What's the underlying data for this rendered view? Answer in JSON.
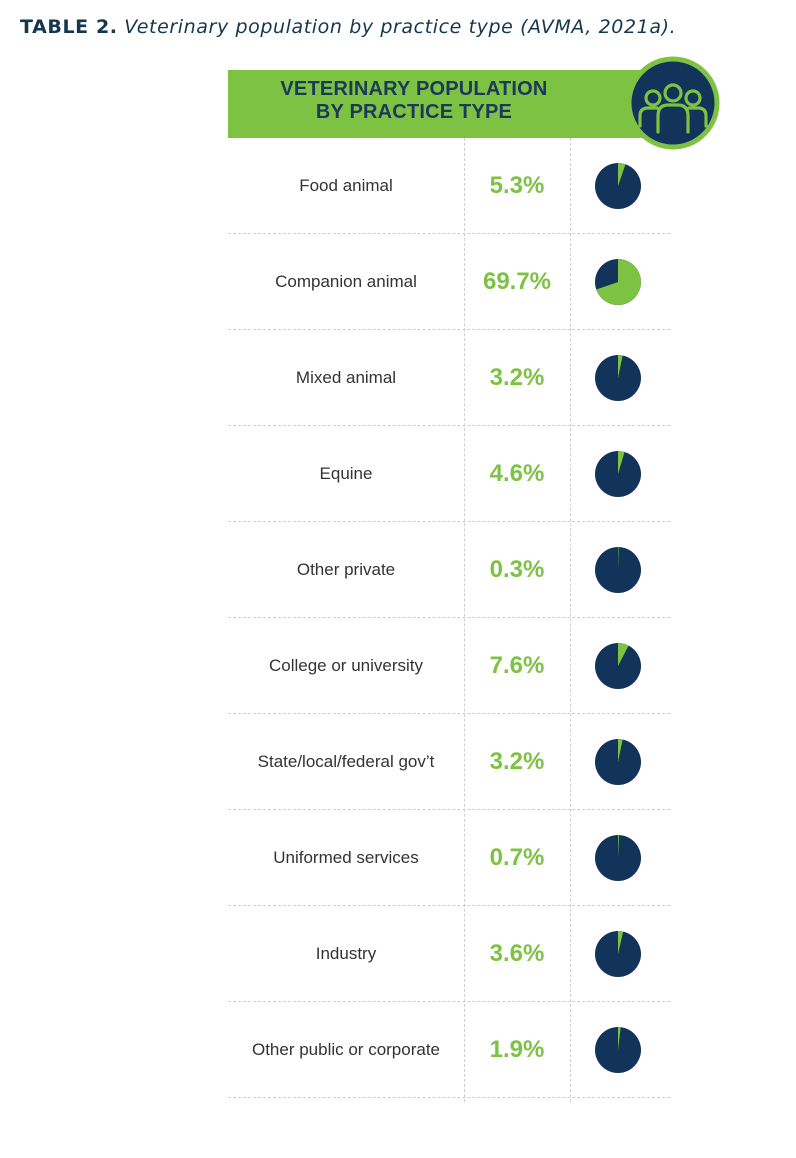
{
  "caption": {
    "label": "TABLE 2.",
    "text": "Veterinary population by practice type (AVMA, 2021a)."
  },
  "colors": {
    "green": "#7dc242",
    "navy": "#12335a",
    "title_text": "#1b3a5b"
  },
  "icons": {
    "banner": "people-group-icon"
  },
  "chart_data": {
    "type": "table",
    "title": "VETERINARY POPULATION BY PRACTICE TYPE",
    "title_line1": "VETERINARY POPULATION",
    "title_line2": "BY PRACTICE TYPE",
    "unit": "%",
    "rows": [
      {
        "category": "Food animal",
        "value": 5.3,
        "label": "5.3%"
      },
      {
        "category": "Companion animal",
        "value": 69.7,
        "label": "69.7%"
      },
      {
        "category": "Mixed animal",
        "value": 3.2,
        "label": "3.2%"
      },
      {
        "category": "Equine",
        "value": 4.6,
        "label": "4.6%"
      },
      {
        "category": "Other private",
        "value": 0.3,
        "label": "0.3%"
      },
      {
        "category": "College or university",
        "value": 7.6,
        "label": "7.6%"
      },
      {
        "category": "State/local/federal gov’t",
        "value": 3.2,
        "label": "3.2%"
      },
      {
        "category": "Uniformed services",
        "value": 0.7,
        "label": "0.7%"
      },
      {
        "category": "Industry",
        "value": 3.6,
        "label": "3.6%"
      },
      {
        "category": "Other public or corporate",
        "value": 1.9,
        "label": "1.9%"
      }
    ]
  }
}
